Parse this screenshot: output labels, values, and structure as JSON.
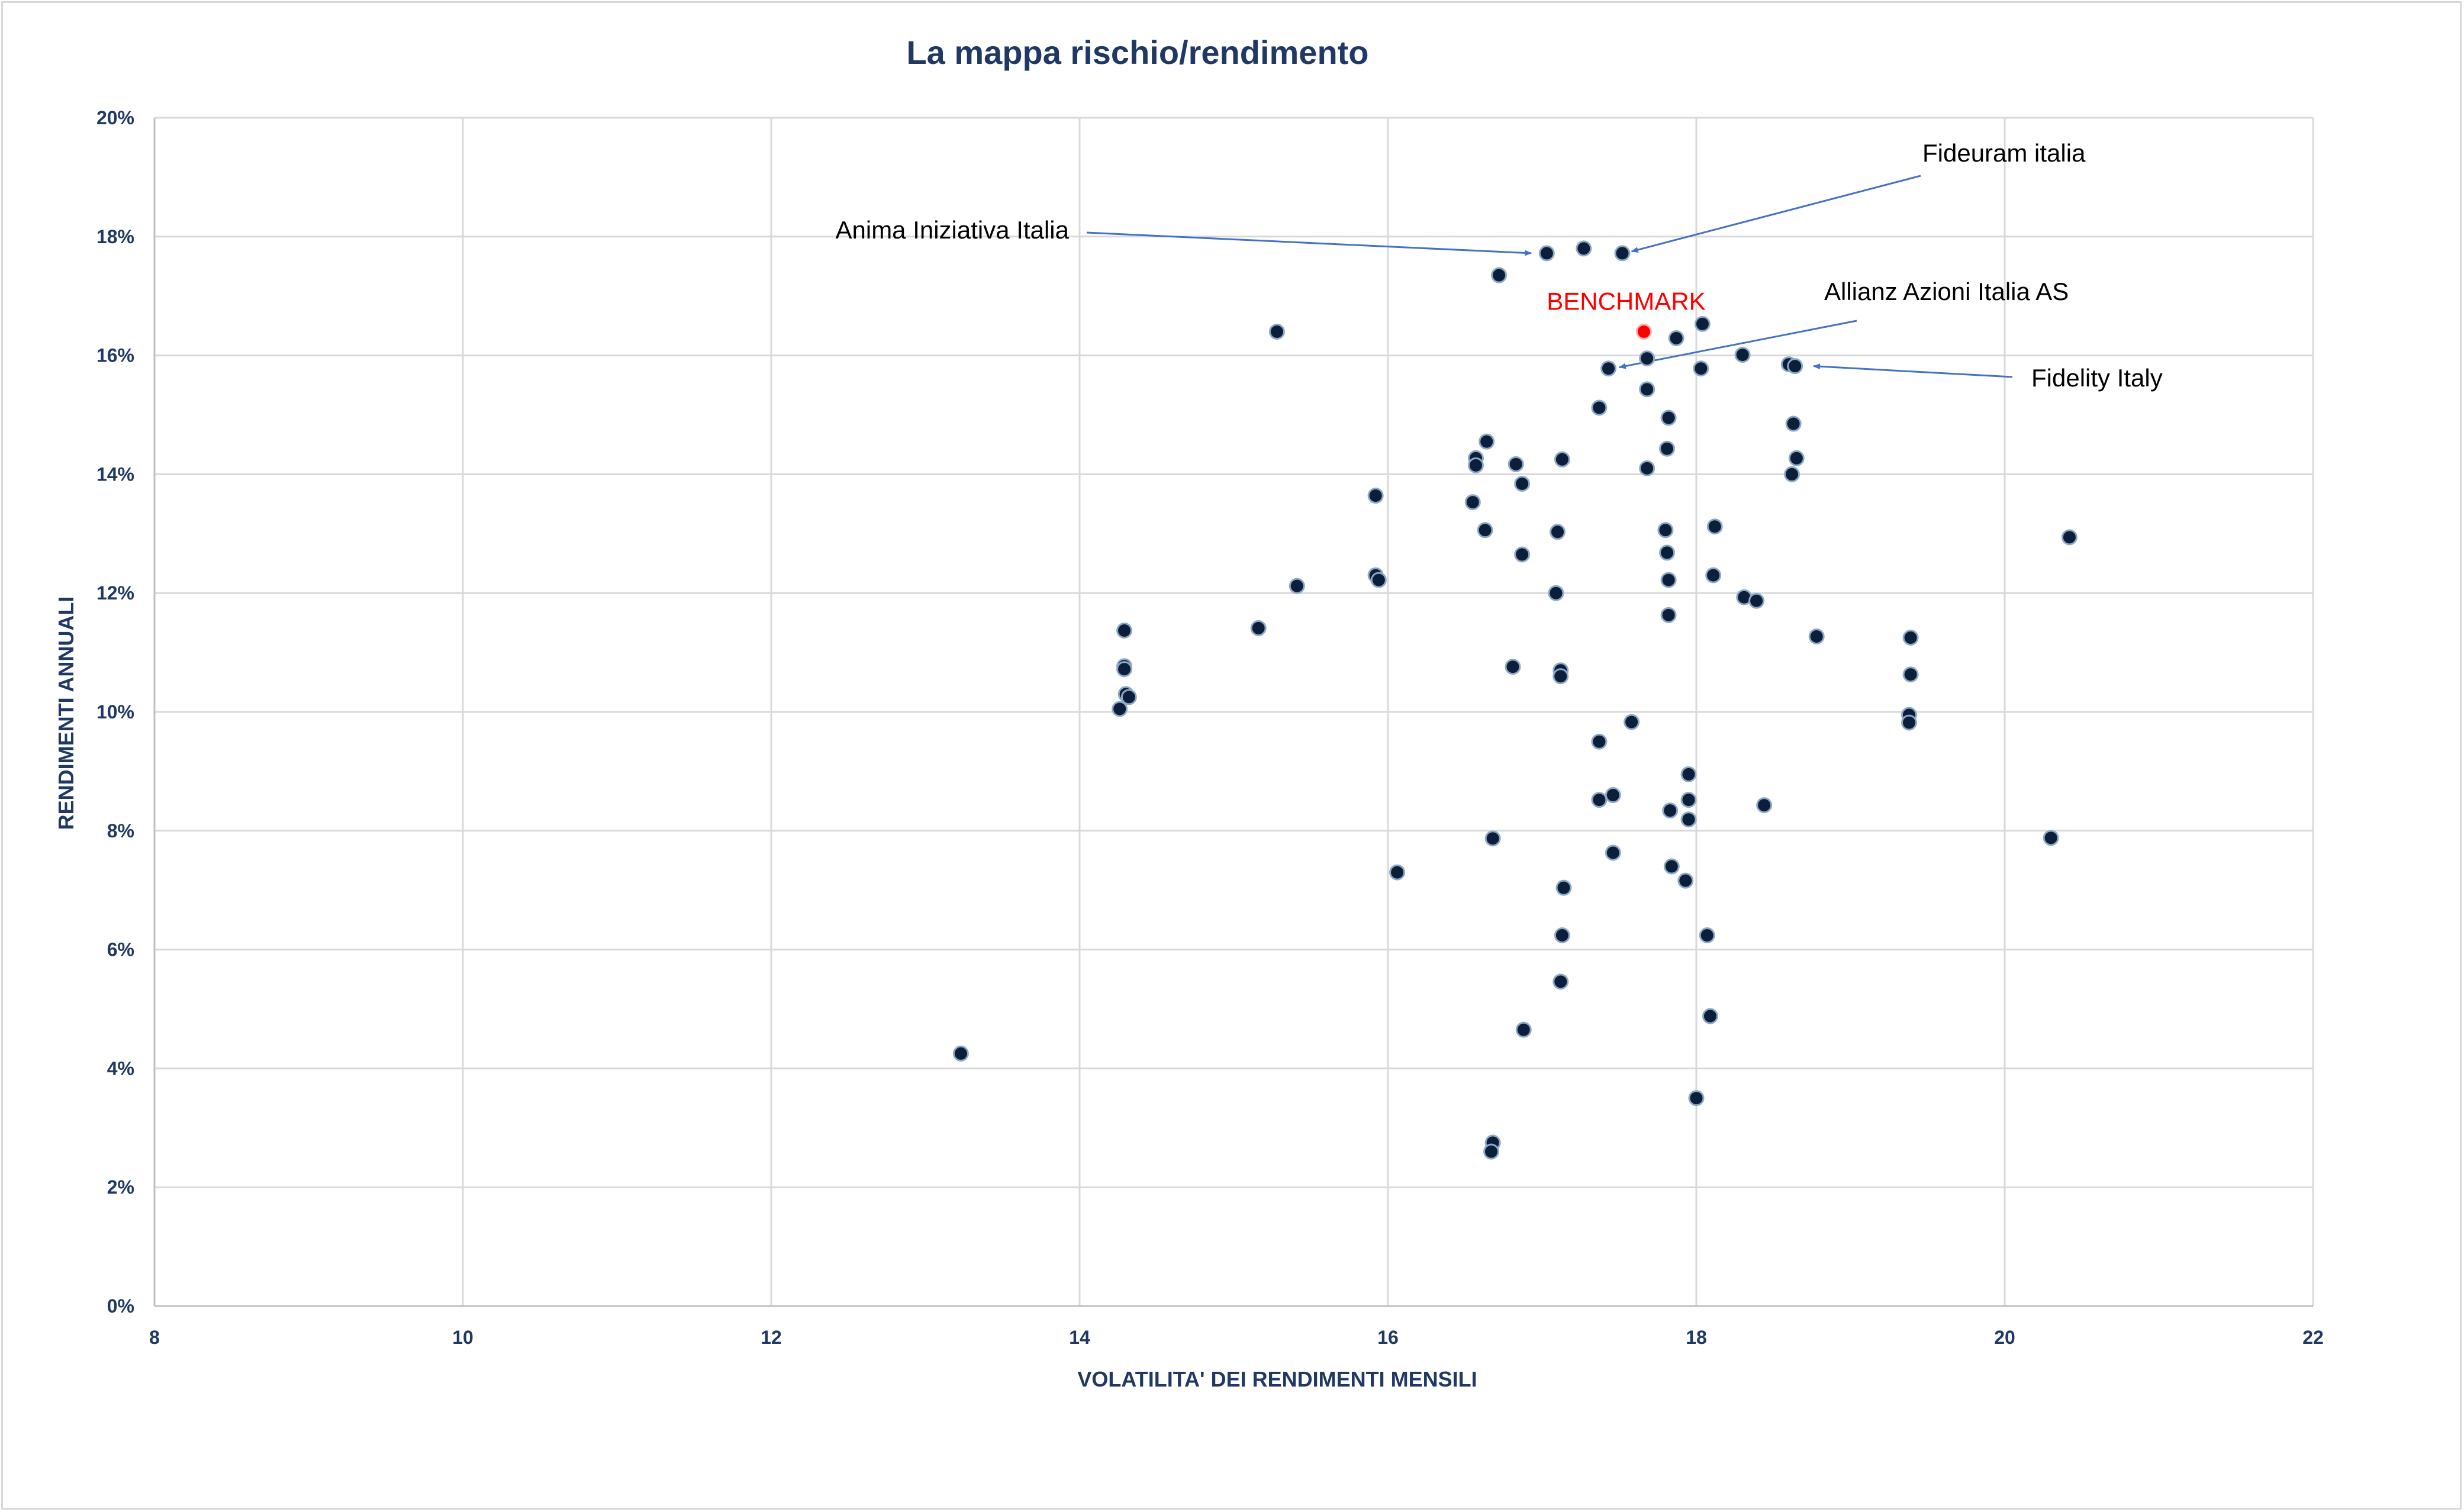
{
  "chart_data": {
    "type": "scatter",
    "title": "La mappa rischio/rendimento",
    "xlabel": "VOLATILITA' DEI RENDIMENTI MENSILI",
    "ylabel": "RENDIMENTI ANNUALI",
    "xlim": [
      8,
      22
    ],
    "ylim": [
      0,
      0.2
    ],
    "xticks": [
      "8",
      "10",
      "12",
      "14",
      "16",
      "18",
      "20",
      "22"
    ],
    "yticks": [
      "0%",
      "2%",
      "4%",
      "6%",
      "8%",
      "10%",
      "12%",
      "14%",
      "16%",
      "18%",
      "20%"
    ],
    "grid": true,
    "colors": {
      "points": "#0b1f3a",
      "point_edge": "#8ea9c8",
      "benchmark": "#ff0000",
      "arrow": "#4472c4",
      "grid": "#d9d9d9"
    },
    "series": [
      {
        "points": [
          [
            17.03,
            0.1772
          ],
          [
            17.27,
            0.178
          ],
          [
            17.52,
            0.1772
          ],
          [
            16.72,
            0.1735
          ],
          [
            15.28,
            0.164
          ],
          [
            18.04,
            0.1653
          ],
          [
            17.87,
            0.1629
          ],
          [
            17.68,
            0.1595
          ],
          [
            17.43,
            0.1578
          ],
          [
            18.3,
            0.1601
          ],
          [
            18.03,
            0.1578
          ],
          [
            18.6,
            0.1585
          ],
          [
            18.64,
            0.1582
          ],
          [
            17.68,
            0.1543
          ],
          [
            17.37,
            0.1512
          ],
          [
            17.82,
            0.1495
          ],
          [
            18.63,
            0.1485
          ],
          [
            16.64,
            0.1455
          ],
          [
            16.57,
            0.1427
          ],
          [
            16.57,
            0.1415
          ],
          [
            16.83,
            0.1417
          ],
          [
            17.13,
            0.1425
          ],
          [
            17.81,
            0.1443
          ],
          [
            17.68,
            0.141
          ],
          [
            18.65,
            0.1427
          ],
          [
            18.62,
            0.14
          ],
          [
            16.87,
            0.1384
          ],
          [
            15.92,
            0.1364
          ],
          [
            16.55,
            0.1353
          ],
          [
            16.63,
            0.1306
          ],
          [
            17.1,
            0.1303
          ],
          [
            17.8,
            0.1306
          ],
          [
            18.12,
            0.1312
          ],
          [
            20.42,
            0.1294
          ],
          [
            16.87,
            0.1265
          ],
          [
            17.81,
            0.1268
          ],
          [
            15.92,
            0.123
          ],
          [
            15.94,
            0.1222
          ],
          [
            15.41,
            0.1212
          ],
          [
            17.82,
            0.1222
          ],
          [
            18.11,
            0.123
          ],
          [
            17.09,
            0.12
          ],
          [
            18.31,
            0.1193
          ],
          [
            18.39,
            0.1187
          ],
          [
            17.82,
            0.1163
          ],
          [
            14.29,
            0.1137
          ],
          [
            15.16,
            0.1141
          ],
          [
            18.78,
            0.1127
          ],
          [
            19.39,
            0.1125
          ],
          [
            14.29,
            0.1077
          ],
          [
            14.29,
            0.1072
          ],
          [
            16.81,
            0.1076
          ],
          [
            17.12,
            0.107
          ],
          [
            17.12,
            0.106
          ],
          [
            19.39,
            0.1063
          ],
          [
            14.3,
            0.103
          ],
          [
            14.32,
            0.1025
          ],
          [
            14.26,
            0.1005
          ],
          [
            19.38,
            0.0995
          ],
          [
            19.38,
            0.0982
          ],
          [
            17.58,
            0.0983
          ],
          [
            17.37,
            0.095
          ],
          [
            17.95,
            0.0895
          ],
          [
            17.46,
            0.086
          ],
          [
            17.37,
            0.0852
          ],
          [
            17.95,
            0.0852
          ],
          [
            18.44,
            0.0843
          ],
          [
            17.83,
            0.0834
          ],
          [
            17.95,
            0.0819
          ],
          [
            16.68,
            0.0787
          ],
          [
            20.3,
            0.0788
          ],
          [
            17.46,
            0.0763
          ],
          [
            17.84,
            0.074
          ],
          [
            16.06,
            0.073
          ],
          [
            17.93,
            0.0716
          ],
          [
            17.14,
            0.0704
          ],
          [
            17.13,
            0.0624
          ],
          [
            18.07,
            0.0624
          ],
          [
            17.12,
            0.0546
          ],
          [
            18.09,
            0.0488
          ],
          [
            16.88,
            0.0465
          ],
          [
            13.23,
            0.0425
          ],
          [
            18.0,
            0.035
          ],
          [
            16.68,
            0.0275
          ],
          [
            16.67,
            0.026
          ]
        ]
      }
    ],
    "benchmark": {
      "label": "BENCHMARK",
      "x": 17.66,
      "y": 0.164
    },
    "annotations": [
      {
        "text": "Fideuram italia",
        "target": [
          17.58,
          0.1775
        ]
      },
      {
        "text": "Anima Iniziativa Italia",
        "target": [
          16.93,
          0.1772
        ]
      },
      {
        "text": "Allianz Azioni Italia AS",
        "target": [
          17.5,
          0.158
        ]
      },
      {
        "text": "Fidelity Italy",
        "target": [
          18.76,
          0.1582
        ]
      }
    ]
  }
}
